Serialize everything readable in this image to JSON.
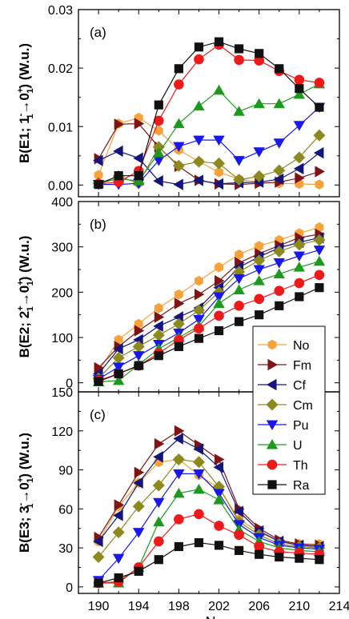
{
  "x_axis": {
    "label": "N",
    "ticks": [
      190,
      194,
      198,
      202,
      206,
      210,
      214
    ],
    "range": [
      188,
      214
    ]
  },
  "legend": {
    "entries": [
      {
        "label": "No",
        "color": "#f7a23a",
        "marker": "hexagon"
      },
      {
        "label": "Fm",
        "color": "#7e1414",
        "marker": "triangle-right"
      },
      {
        "label": "Cf",
        "color": "#14147e",
        "marker": "triangle-left"
      },
      {
        "label": "Cm",
        "color": "#8c8a1e",
        "marker": "diamond"
      },
      {
        "label": "Pu",
        "color": "#1818ee",
        "marker": "triangle-down"
      },
      {
        "label": "U",
        "color": "#1d9a1d",
        "marker": "triangle-up"
      },
      {
        "label": "Th",
        "color": "#ee1a1a",
        "marker": "circle"
      },
      {
        "label": "Ra",
        "color": "#111111",
        "marker": "square"
      }
    ]
  },
  "chart_data": [
    {
      "type": "line",
      "panel": "(a)",
      "ylabel_parts": [
        "B(E1; 1",
        "-",
        "1",
        "→0",
        "+",
        "1",
        ") (W.u.)"
      ],
      "ylim": [
        -0.002,
        0.03
      ],
      "yticks": [
        "0.00",
        "0.01",
        "0.02",
        "0.03"
      ],
      "ytick_values": [
        0,
        0.01,
        0.02,
        0.03
      ],
      "x": [
        190,
        192,
        194,
        196,
        198,
        200,
        202,
        204,
        206,
        208,
        210,
        212
      ],
      "series": [
        {
          "name": "No",
          "values": [
            0.0017,
            0.0105,
            0.0115,
            0.0093,
            0.006,
            0.004,
            0.0022,
            0.001,
            0.0005,
            0.0003,
            0.0002,
            0.0001
          ]
        },
        {
          "name": "Fm",
          "values": [
            0.0045,
            0.0104,
            0.0105,
            0.0065,
            0.0032,
            0.0008,
            0.0002,
            0.0001,
            0.0003,
            0.0005,
            0.0012,
            0.0023
          ]
        },
        {
          "name": "Cf",
          "values": [
            0.0042,
            0.0058,
            0.0046,
            0.0007,
            0.0001,
            0.0008,
            0.0002,
            0.0004,
            0.0005,
            0.001,
            0.0028,
            0.0055
          ]
        },
        {
          "name": "Cm",
          "values": [
            0.0003,
            0.0015,
            0.0003,
            0.0065,
            0.0033,
            0.004,
            0.0037,
            0.0009,
            0.0015,
            0.0025,
            0.0047,
            0.0085
          ]
        },
        {
          "name": "Pu",
          "values": [
            0.0001,
            0.0001,
            0.0003,
            0.0042,
            0.0066,
            0.0077,
            0.0077,
            0.0042,
            0.0057,
            0.0072,
            0.0102,
            0.0133
          ]
        },
        {
          "name": "U",
          "values": [
            0.0003,
            0.0011,
            0.0007,
            0.0055,
            0.0105,
            0.0135,
            0.0162,
            0.0126,
            0.0139,
            0.0139,
            0.0155,
            0.0173
          ]
        },
        {
          "name": "Th",
          "values": [
            0.0002,
            0.0005,
            0.0024,
            0.011,
            0.0172,
            0.0215,
            0.024,
            0.0214,
            0.0213,
            0.0195,
            0.018,
            0.0175
          ]
        },
        {
          "name": "Ra",
          "values": [
            0.0001,
            0.0016,
            0.0016,
            0.0137,
            0.0199,
            0.0236,
            0.0245,
            0.0233,
            0.0225,
            0.0199,
            0.0165,
            0.0133
          ]
        }
      ]
    },
    {
      "type": "line",
      "panel": "(b)",
      "ylabel_parts": [
        "B(E2; 2",
        "+",
        "1",
        "→0",
        "+",
        "1",
        ") (W.u.)"
      ],
      "ylim": [
        -20,
        400
      ],
      "yticks": [
        "0",
        "100",
        "200",
        "300",
        "400"
      ],
      "ytick_values": [
        0,
        100,
        200,
        300,
        400
      ],
      "x": [
        190,
        192,
        194,
        196,
        198,
        200,
        202,
        204,
        206,
        208,
        210,
        212
      ],
      "series": [
        {
          "name": "No",
          "values": [
            25,
            95,
            130,
            165,
            195,
            225,
            255,
            283,
            302,
            315,
            330,
            343
          ]
        },
        {
          "name": "Fm",
          "values": [
            33,
            80,
            115,
            145,
            175,
            195,
            225,
            265,
            285,
            303,
            320,
            328
          ]
        },
        {
          "name": "Cf",
          "values": [
            20,
            75,
            95,
            125,
            145,
            165,
            210,
            255,
            278,
            298,
            310,
            320
          ]
        },
        {
          "name": "Cm",
          "values": [
            10,
            55,
            80,
            105,
            130,
            160,
            200,
            245,
            270,
            290,
            305,
            315
          ]
        },
        {
          "name": "Pu",
          "values": [
            8,
            35,
            60,
            85,
            110,
            140,
            190,
            230,
            250,
            265,
            280,
            293
          ]
        },
        {
          "name": "U",
          "values": [
            2,
            5,
            40,
            75,
            100,
            125,
            175,
            205,
            225,
            240,
            255,
            268
          ]
        },
        {
          "name": "Th",
          "values": [
            5,
            20,
            38,
            65,
            95,
            120,
            148,
            170,
            185,
            203,
            220,
            238
          ]
        },
        {
          "name": "Ra",
          "values": [
            3,
            20,
            38,
            60,
            80,
            98,
            115,
            135,
            150,
            170,
            190,
            210
          ]
        }
      ]
    },
    {
      "type": "line",
      "panel": "(c)",
      "ylabel_parts": [
        "B(E3; 3",
        "-",
        "1",
        "→0",
        "+",
        "1",
        ") (W.u.)"
      ],
      "ylim": [
        -5,
        150
      ],
      "yticks": [
        "0",
        "30",
        "60",
        "90",
        "120",
        "150"
      ],
      "ytick_values": [
        0,
        30,
        60,
        90,
        120,
        150
      ],
      "x": [
        190,
        192,
        194,
        196,
        198,
        200,
        202,
        204,
        206,
        208,
        210,
        212
      ],
      "series": [
        {
          "name": "No",
          "values": [
            35,
            62,
            80,
            96,
            98,
            86,
            76,
            52,
            42,
            35,
            33,
            33
          ]
        },
        {
          "name": "Fm",
          "values": [
            38,
            63,
            88,
            110,
            120,
            109,
            98,
            60,
            45,
            36,
            33,
            32
          ]
        },
        {
          "name": "Cf",
          "values": [
            35,
            55,
            80,
            100,
            114,
            106,
            92,
            58,
            43,
            35,
            32,
            31
          ]
        },
        {
          "name": "Cm",
          "values": [
            23,
            42,
            62,
            78,
            98,
            96,
            77,
            50,
            40,
            33,
            31,
            30
          ]
        },
        {
          "name": "Pu",
          "values": [
            5,
            22,
            42,
            65,
            87,
            87,
            72,
            48,
            38,
            32,
            30,
            29
          ]
        },
        {
          "name": "U",
          "values": [
            3,
            3,
            15,
            50,
            72,
            75,
            67,
            44,
            35,
            30,
            28,
            27
          ]
        },
        {
          "name": "Th",
          "values": [
            3,
            4,
            15,
            35,
            52,
            56,
            47,
            40,
            31,
            27,
            26,
            25
          ]
        },
        {
          "name": "Ra",
          "values": [
            3,
            7,
            12,
            21,
            31,
            34,
            32,
            28,
            25,
            23,
            22,
            21
          ]
        }
      ]
    }
  ]
}
